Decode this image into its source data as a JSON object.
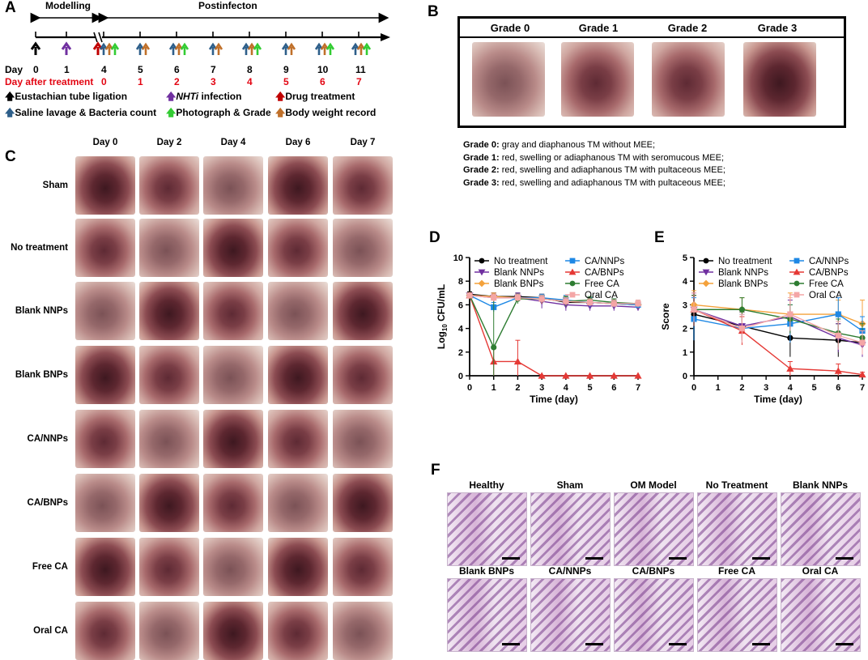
{
  "panel_labels": {
    "a": "A",
    "b": "B",
    "c": "C",
    "d": "D",
    "e": "E",
    "f": "F"
  },
  "panel_a": {
    "phase_modelling": "Modelling",
    "phase_postinfection": "Postinfecton",
    "day_row_label": "Day",
    "days": [
      "0",
      "1",
      "4",
      "5",
      "6",
      "7",
      "8",
      "9",
      "10",
      "11"
    ],
    "treatment_row_label": "Day after treatment",
    "treatment_days": [
      "0",
      "1",
      "2",
      "3",
      "4",
      "5",
      "6",
      "7"
    ],
    "legend": {
      "ligation": "Eustachian tube ligation",
      "infection_italic": "NHTi",
      "infection": " infection",
      "drug": "Drug treatment",
      "lavage": "Saline lavage & Bacteria count",
      "photo": "Photograph & Grade",
      "weight": "Body weight record"
    },
    "colors": {
      "black": "#000000",
      "purple": "#7030a0",
      "red": "#c00000",
      "blue": "#2e5f8a",
      "green": "#33cc33",
      "orange": "#c0702a"
    }
  },
  "panel_b": {
    "grades": [
      "Grade 0",
      "Grade 1",
      "Grade 2",
      "Grade 3"
    ],
    "descriptions": [
      {
        "label": "Grade 0:",
        "text": " gray and diaphanous TM without MEE;"
      },
      {
        "label": "Grade 1:",
        "text": " red, swelling or adiaphanous TM with seromucous MEE;"
      },
      {
        "label": "Grade 2:",
        "text": " red, swelling and adiaphanous TM with pultaceous MEE;"
      },
      {
        "label": "Grade 3:",
        "text": " red, swelling and adiaphanous TM with pultaceous MEE;"
      }
    ]
  },
  "panel_c": {
    "columns": [
      "Day 0",
      "Day 2",
      "Day 4",
      "Day 6",
      "Day 7"
    ],
    "rows": [
      "Sham",
      "No treatment",
      "Blank NNPs",
      "Blank BNPs",
      "CA/NNPs",
      "CA/BNPs",
      "Free CA",
      "Oral CA"
    ]
  },
  "panel_f": {
    "row1": [
      "Healthy",
      "Sham",
      "OM Model",
      "No Treatment",
      "Blank NNPs"
    ],
    "row2": [
      "Blank BNPs",
      "CA/NNPs",
      "CA/BNPs",
      "Free CA",
      "Oral CA"
    ]
  },
  "chart_data": [
    {
      "id": "D",
      "type": "line",
      "xlabel": "Time (day)",
      "ylabel_main": "Log",
      "ylabel_sub": "10",
      "ylabel_rest": " CFU/mL",
      "xlim": [
        0,
        7
      ],
      "ylim": [
        0,
        10
      ],
      "xticks": [
        0,
        1,
        2,
        3,
        4,
        5,
        6,
        7
      ],
      "yticks": [
        0,
        2,
        4,
        6,
        8,
        10
      ],
      "series": [
        {
          "name": "No treatment",
          "color": "#000000",
          "marker": "circle",
          "x": [
            0,
            1,
            2,
            3,
            4,
            5,
            6,
            7
          ],
          "values": [
            6.9,
            6.7,
            6.7,
            6.6,
            6.2,
            6.2,
            6.1,
            6.0
          ],
          "err": [
            0.2,
            0.3,
            0.3,
            0.3,
            0.5,
            0.4,
            0.4,
            0.3
          ]
        },
        {
          "name": "Blank NNPs",
          "color": "#7030a0",
          "marker": "tri-down",
          "x": [
            0,
            1,
            2,
            3,
            4,
            5,
            6,
            7
          ],
          "values": [
            6.8,
            6.6,
            6.6,
            6.3,
            6.0,
            5.9,
            5.9,
            5.8
          ],
          "err": [
            0.2,
            0.4,
            0.4,
            0.6,
            0.5,
            0.4,
            0.4,
            0.3
          ]
        },
        {
          "name": "Blank BNPs",
          "color": "#f4a23c",
          "marker": "diamond",
          "x": [
            0,
            1,
            2,
            3,
            4,
            5,
            6,
            7
          ],
          "values": [
            6.8,
            6.7,
            6.6,
            6.5,
            6.3,
            6.2,
            6.1,
            6.0
          ],
          "err": [
            0.2,
            0.3,
            0.3,
            0.4,
            0.4,
            0.3,
            0.3,
            0.3
          ]
        },
        {
          "name": "CA/NNPs",
          "color": "#1e88e5",
          "marker": "square",
          "x": [
            0,
            1,
            2,
            3,
            4,
            5,
            6,
            7
          ],
          "values": [
            6.8,
            5.8,
            6.6,
            6.6,
            6.4,
            6.2,
            6.1,
            6.0
          ],
          "err": [
            0.2,
            0.4,
            0.3,
            0.3,
            0.4,
            0.4,
            0.3,
            0.3
          ]
        },
        {
          "name": "CA/BNPs",
          "color": "#e53935",
          "marker": "triangle",
          "x": [
            0,
            1,
            2,
            3,
            4,
            5,
            6,
            7
          ],
          "values": [
            6.8,
            1.2,
            1.2,
            0,
            0,
            0,
            0,
            0
          ],
          "err": [
            0.2,
            1.2,
            1.8,
            0,
            0,
            0,
            0,
            0
          ]
        },
        {
          "name": "Free CA",
          "color": "#2e7d32",
          "marker": "circle",
          "x": [
            0,
            1,
            2,
            3,
            4,
            5,
            6,
            7
          ],
          "values": [
            6.8,
            2.4,
            6.5,
            6.5,
            6.3,
            6.4,
            6.2,
            6.1
          ],
          "err": [
            0.2,
            4.2,
            0.4,
            0.3,
            0.4,
            0.3,
            0.3,
            0.3
          ]
        },
        {
          "name": "Oral CA",
          "color": "#f4a6a6",
          "marker": "square",
          "x": [
            0,
            1,
            2,
            3,
            4,
            5,
            6,
            7
          ],
          "values": [
            6.8,
            6.6,
            6.6,
            6.5,
            6.3,
            6.2,
            6.1,
            6.1
          ],
          "err": [
            0.2,
            0.3,
            0.3,
            0.3,
            0.3,
            0.3,
            0.3,
            0.3
          ]
        }
      ]
    },
    {
      "id": "E",
      "type": "line",
      "xlabel": "Time (day)",
      "ylabel_main": "Score",
      "ylabel_sub": "",
      "ylabel_rest": "",
      "xlim": [
        0,
        7
      ],
      "ylim": [
        0,
        5
      ],
      "xticks": [
        0,
        1,
        2,
        3,
        4,
        5,
        6,
        7
      ],
      "yticks": [
        0,
        1,
        2,
        3,
        4,
        5
      ],
      "series": [
        {
          "name": "No treatment",
          "color": "#000000",
          "marker": "circle",
          "x": [
            0,
            2,
            4,
            6,
            7
          ],
          "values": [
            2.6,
            2.1,
            1.6,
            1.5,
            1.4
          ],
          "err": [
            0.8,
            0.6,
            0.8,
            0.7,
            0.6
          ]
        },
        {
          "name": "Blank NNPs",
          "color": "#7030a0",
          "marker": "tri-down",
          "x": [
            0,
            2,
            4,
            6,
            7
          ],
          "values": [
            2.8,
            2.1,
            2.5,
            1.6,
            1.3
          ],
          "err": [
            0.7,
            0.5,
            0.7,
            0.6,
            0.5
          ]
        },
        {
          "name": "Blank BNPs",
          "color": "#f4a23c",
          "marker": "diamond",
          "x": [
            0,
            2,
            4,
            6,
            7
          ],
          "values": [
            3.0,
            2.8,
            2.6,
            2.6,
            2.2
          ],
          "err": [
            0.6,
            0.5,
            0.9,
            0.6,
            1.0
          ]
        },
        {
          "name": "CA/NNPs",
          "color": "#1e88e5",
          "marker": "square",
          "x": [
            0,
            2,
            4,
            6,
            7
          ],
          "values": [
            2.4,
            2.0,
            2.2,
            2.6,
            1.9
          ],
          "err": [
            0.9,
            0.6,
            0.8,
            0.7,
            0.6
          ]
        },
        {
          "name": "CA/BNPs",
          "color": "#e53935",
          "marker": "triangle",
          "x": [
            0,
            2,
            4,
            6,
            7
          ],
          "values": [
            2.8,
            1.9,
            0.3,
            0.2,
            0.05
          ],
          "err": [
            0.6,
            0.6,
            0.3,
            0.3,
            0.1
          ]
        },
        {
          "name": "Free CA",
          "color": "#2e7d32",
          "marker": "circle",
          "x": [
            0,
            2,
            4,
            6,
            7
          ],
          "values": [
            2.8,
            2.8,
            2.4,
            1.8,
            1.6
          ],
          "err": [
            0.6,
            0.5,
            0.6,
            0.6,
            0.6
          ]
        },
        {
          "name": "Oral CA",
          "color": "#f4a6a6",
          "marker": "square",
          "x": [
            0,
            2,
            4,
            6,
            7
          ],
          "values": [
            2.8,
            2.0,
            2.6,
            1.7,
            1.4
          ],
          "err": [
            0.7,
            0.6,
            0.7,
            0.6,
            0.5
          ]
        }
      ]
    }
  ]
}
